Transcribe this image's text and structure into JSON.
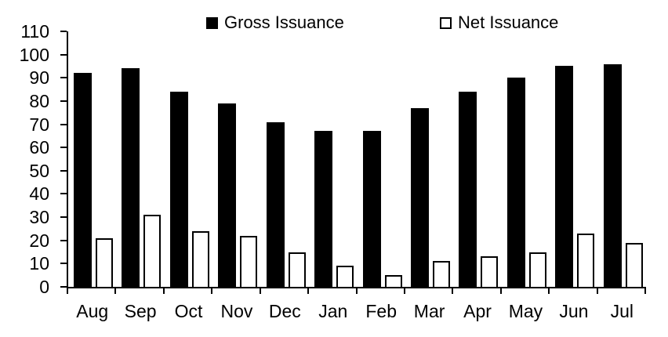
{
  "chart_data": {
    "type": "bar",
    "title": "",
    "xlabel": "",
    "ylabel": "",
    "categories": [
      "Aug",
      "Sep",
      "Oct",
      "Nov",
      "Dec",
      "Jan",
      "Feb",
      "Mar",
      "Apr",
      "May",
      "Jun",
      "Jul"
    ],
    "series": [
      {
        "name": "Gross Issuance",
        "values": [
          92,
          94,
          84,
          79,
          71,
          67,
          67,
          77,
          84,
          90,
          95,
          96
        ],
        "fill": "#000000",
        "border": "#000000"
      },
      {
        "name": "Net Issuance",
        "values": [
          21,
          31,
          24,
          22,
          15,
          9,
          5,
          11,
          13,
          15,
          23,
          19
        ],
        "fill": "#ffffff",
        "border": "#000000"
      }
    ],
    "ylim": [
      0,
      110
    ],
    "yticks": [
      0,
      10,
      20,
      30,
      40,
      50,
      60,
      70,
      80,
      90,
      100,
      110
    ],
    "grid": false,
    "legend_position": "top-center"
  },
  "colors": {
    "axis": "#000000",
    "text": "#000000",
    "background": "#ffffff"
  }
}
